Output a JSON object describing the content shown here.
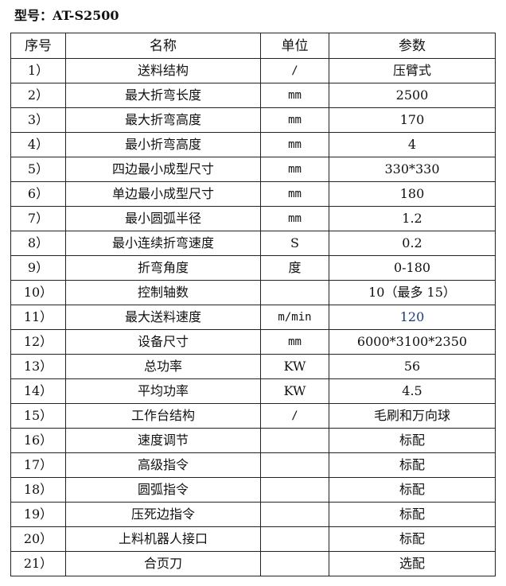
{
  "title": "型号：AT-S2500",
  "headers": [
    "序号",
    "名称",
    "单位",
    "参数"
  ],
  "rows": [
    [
      "1）",
      "送料结构",
      "/",
      "压臂式"
    ],
    [
      "2）",
      "最大折弯长度",
      "mm",
      "2500"
    ],
    [
      "3）",
      "最大折弯高度",
      "mm",
      "170"
    ],
    [
      "4）",
      "最小折弯高度",
      "mm",
      "4"
    ],
    [
      "5）",
      "四边最小成型尺寸",
      "mm",
      "330*330"
    ],
    [
      "6）",
      "单边最小成型尺寸",
      "mm",
      "180"
    ],
    [
      "7）",
      "最小圆弧半径",
      "mm",
      "1.2"
    ],
    [
      "8）",
      "最小连续折弯速度",
      "S",
      "0.2"
    ],
    [
      "9）",
      "折弯角度",
      "度",
      "0-180"
    ],
    [
      "10）",
      "控制轴数",
      "",
      "10（最多 15）"
    ],
    [
      "11）",
      "最大送料速度",
      "m/min",
      "120"
    ],
    [
      "12）",
      "设备尺寸",
      "mm",
      "6000*3100*2350"
    ],
    [
      "13）",
      "总功率",
      "KW",
      "56"
    ],
    [
      "14）",
      "平均功率",
      "KW",
      "4.5"
    ],
    [
      "15）",
      "工作台结构",
      "/",
      "毛刷和万向球"
    ],
    [
      "16）",
      "速度调节",
      "",
      "标配"
    ],
    [
      "17）",
      "高级指令",
      "",
      "标配"
    ],
    [
      "18）",
      "圆弧指令",
      "",
      "标配"
    ],
    [
      "19）",
      "压死边指令",
      "",
      "标配"
    ],
    [
      "20）",
      "上料机器人接口",
      "",
      "标配"
    ],
    [
      "21）",
      "合页刀",
      "",
      "选配"
    ]
  ],
  "highlight_color": "#1f3a7a"
}
